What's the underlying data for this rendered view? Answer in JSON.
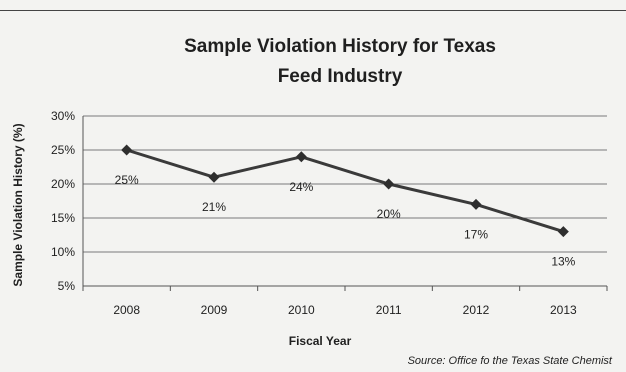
{
  "chart_data": {
    "type": "line",
    "title_lines": [
      "Sample Violation  History for Texas",
      "Feed Industry"
    ],
    "xlabel": "Fiscal Year",
    "ylabel": "Sample Violation History (%)",
    "categories": [
      "2008",
      "2009",
      "2010",
      "2011",
      "2012",
      "2013"
    ],
    "values": [
      25,
      21,
      24,
      20,
      17,
      13
    ],
    "data_labels": [
      "25%",
      "21%",
      "24%",
      "20%",
      "17%",
      "13%"
    ],
    "y_ticks": [
      5,
      10,
      15,
      20,
      25,
      30
    ],
    "y_tick_labels": [
      "5%",
      "10%",
      "15%",
      "20%",
      "25%",
      "30%"
    ],
    "ylim": [
      5,
      30
    ],
    "grid": true,
    "legend": "none",
    "marker": "diamond",
    "line_color": "#3a3a3a"
  },
  "source": "Source: Office fo the Texas State Chemist"
}
